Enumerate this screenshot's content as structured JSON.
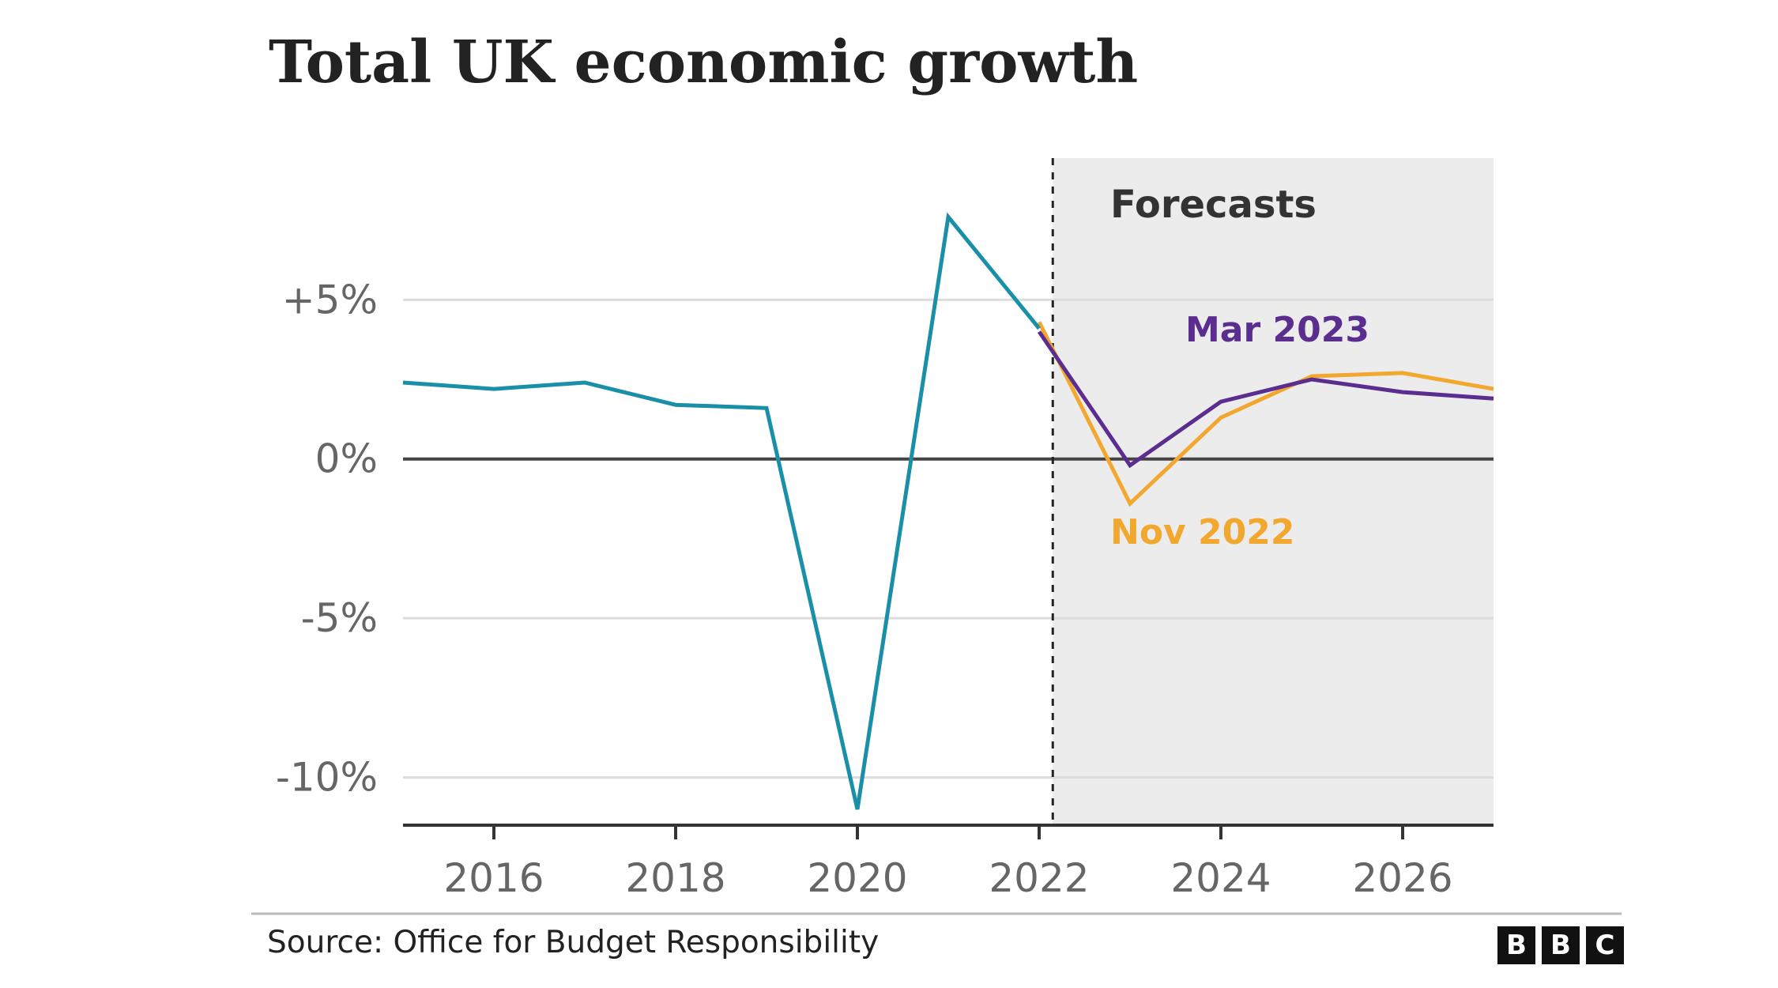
{
  "title": "Total UK economic growth",
  "source": "Source: Office for Budget Responsibility",
  "logo": [
    "B",
    "B",
    "C"
  ],
  "forecast_label": "Forecasts",
  "colors": {
    "historic": "#1a8fa8",
    "mar2023": "#5b2d8e",
    "nov2022": "#f2a72e",
    "forecast_bg": "#ececec",
    "grid": "#dcdcdc",
    "zero": "#444444",
    "axis_text": "#666666"
  },
  "chart_data": {
    "type": "line",
    "title": "Total UK economic growth",
    "xlim": [
      2015,
      2027
    ],
    "ylim": [
      -11.5,
      9.5
    ],
    "x_ticks": [
      2016,
      2018,
      2020,
      2022,
      2024,
      2026
    ],
    "x_tick_labels": [
      "2016",
      "2018",
      "2020",
      "2022",
      "2024",
      "2026"
    ],
    "y_ticks": [
      5,
      0,
      -5,
      -10
    ],
    "y_tick_labels": [
      "+5%",
      "0%",
      "-5%",
      "-10%"
    ],
    "grid": true,
    "forecast_region": {
      "start": 2022.15,
      "end": 2027,
      "label": "Forecasts"
    },
    "series": [
      {
        "key": "historic",
        "x": [
          2015,
          2016,
          2017,
          2018,
          2019,
          2020,
          2021,
          2022
        ],
        "y": [
          2.4,
          2.2,
          2.4,
          1.7,
          1.6,
          -11.0,
          7.6,
          4.1
        ]
      },
      {
        "key": "nov2022",
        "name": "Nov 2022",
        "x": [
          2022,
          2023,
          2024,
          2025,
          2026,
          2027
        ],
        "y": [
          4.3,
          -1.4,
          1.3,
          2.6,
          2.7,
          2.2
        ]
      },
      {
        "key": "mar2023",
        "name": "Mar 2023",
        "x": [
          2022,
          2023,
          2024,
          2025,
          2026,
          2027
        ],
        "y": [
          4.0,
          -0.2,
          1.8,
          2.5,
          2.1,
          1.9
        ]
      }
    ]
  }
}
